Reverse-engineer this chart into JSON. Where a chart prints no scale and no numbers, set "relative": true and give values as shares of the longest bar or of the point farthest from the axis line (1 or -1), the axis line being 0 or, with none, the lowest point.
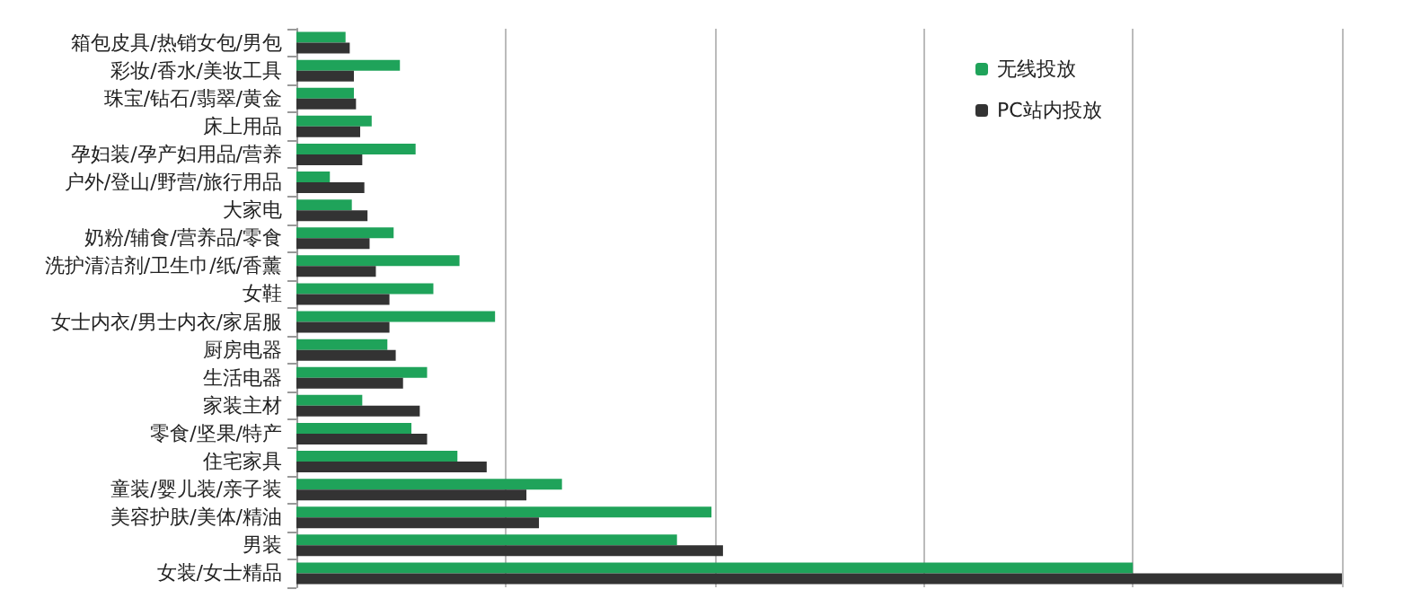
{
  "chart_data": {
    "type": "bar",
    "orientation": "horizontal",
    "relative": true,
    "grid": "x",
    "legend": "top right",
    "categories": [
      "箱包皮具/热销女包/男包",
      "彩妆/香水/美妆工具",
      "珠宝/钻石/翡翠/黄金",
      "床上用品",
      "孕妇装/孕产妇用品/营养",
      "户外/登山/野营/旅行用品",
      "大家电",
      "奶粉/辅食/营养品/零食",
      "洗护清洁剂/卫生巾/纸/香薰",
      "女鞋",
      "女士内衣/男士内衣/家居服",
      "厨房电器",
      "生活电器",
      "家装主材",
      "零食/坚果/特产",
      "住宅家具",
      "童装/婴儿装/亲子装",
      "美容护肤/美体/精油",
      "男装",
      "女装/女士精品"
    ],
    "series": [
      {
        "name": "无线投放",
        "color": "#1fa35a",
        "values": [
          0.047,
          0.099,
          0.055,
          0.072,
          0.114,
          0.032,
          0.053,
          0.093,
          0.156,
          0.131,
          0.19,
          0.087,
          0.125,
          0.063,
          0.11,
          0.154,
          0.254,
          0.397,
          0.364,
          0.8
        ]
      },
      {
        "name": "PC站内投放",
        "color": "#333333",
        "values": [
          0.051,
          0.055,
          0.057,
          0.061,
          0.063,
          0.065,
          0.068,
          0.07,
          0.076,
          0.089,
          0.089,
          0.095,
          0.102,
          0.118,
          0.125,
          0.182,
          0.22,
          0.232,
          0.408,
          1.0
        ]
      }
    ]
  }
}
